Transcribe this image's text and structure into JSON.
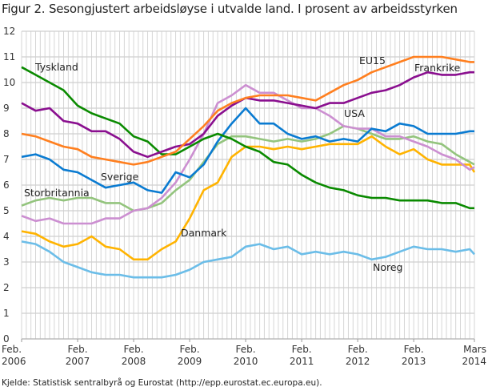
{
  "title": "Figur 2. Sesongjustert arbeidsløyse i utvalde land. I prosent av arbeidsstyrken",
  "source": "Kjelde: Statistisk sentralbyrå og Eurostat (http://epp.eurostat.ec.europa.eu).",
  "chart_data": {
    "type": "line",
    "title": "Figur 2. Sesongjustert arbeidsløyse i utvalde land. I prosent av arbeidsstyrken",
    "ylim": [
      0,
      12
    ],
    "yticks": [
      0,
      1,
      2,
      3,
      4,
      5,
      6,
      7,
      8,
      9,
      10,
      11,
      12
    ],
    "grid": true,
    "legend": "inline labels",
    "xtick_labels": [
      [
        "Feb.",
        "2006"
      ],
      [
        "Feb.",
        "2007"
      ],
      [
        "Feb.",
        "2008"
      ],
      [
        "Feb.",
        "2009"
      ],
      [
        "Feb.",
        "2010"
      ],
      [
        "Feb.",
        "2011"
      ],
      [
        "Feb.",
        "2012"
      ],
      [
        "Feb.",
        "2013"
      ],
      [
        "Mars",
        "2014"
      ]
    ],
    "x": [
      "2006-02",
      "2006-05",
      "2006-08",
      "2006-11",
      "2007-02",
      "2007-05",
      "2007-08",
      "2007-11",
      "2008-02",
      "2008-05",
      "2008-08",
      "2008-11",
      "2009-02",
      "2009-05",
      "2009-08",
      "2009-11",
      "2010-02",
      "2010-05",
      "2010-08",
      "2010-11",
      "2011-02",
      "2011-05",
      "2011-08",
      "2011-11",
      "2012-02",
      "2012-05",
      "2012-08",
      "2012-11",
      "2013-02",
      "2013-05",
      "2013-08",
      "2013-11",
      "2014-02",
      "2014-03"
    ],
    "series": [
      {
        "name": "Noreg",
        "color": "#6bbde8",
        "values": [
          3.8,
          3.7,
          3.4,
          3.0,
          2.8,
          2.6,
          2.5,
          2.5,
          2.4,
          2.4,
          2.4,
          2.5,
          2.7,
          3.0,
          3.1,
          3.2,
          3.6,
          3.7,
          3.5,
          3.6,
          3.3,
          3.4,
          3.3,
          3.4,
          3.3,
          3.1,
          3.2,
          3.4,
          3.6,
          3.5,
          3.5,
          3.4,
          3.5,
          3.3
        ]
      },
      {
        "name": "Danmark",
        "color": "#ffb300",
        "values": [
          4.2,
          4.1,
          3.8,
          3.6,
          3.7,
          4.0,
          3.6,
          3.5,
          3.1,
          3.1,
          3.5,
          3.8,
          4.7,
          5.8,
          6.1,
          7.1,
          7.5,
          7.5,
          7.4,
          7.5,
          7.4,
          7.5,
          7.6,
          7.6,
          7.6,
          7.9,
          7.5,
          7.2,
          7.4,
          7.0,
          6.8,
          6.8,
          6.8,
          6.5
        ]
      },
      {
        "name": "Storbritannia",
        "color": "#93c47d",
        "values": [
          5.2,
          5.4,
          5.5,
          5.4,
          5.5,
          5.5,
          5.3,
          5.3,
          5.0,
          5.1,
          5.3,
          5.8,
          6.2,
          6.9,
          7.6,
          7.9,
          7.9,
          7.8,
          7.7,
          7.8,
          7.7,
          7.8,
          8.0,
          8.3,
          8.2,
          8.0,
          7.8,
          7.8,
          7.9,
          7.7,
          7.6,
          7.2,
          6.9,
          6.8
        ]
      },
      {
        "name": "USA",
        "color": "#cc8fd1",
        "values": [
          4.8,
          4.6,
          4.7,
          4.5,
          4.5,
          4.5,
          4.7,
          4.7,
          5.0,
          5.1,
          5.5,
          6.1,
          7.0,
          8.0,
          9.2,
          9.5,
          9.9,
          9.6,
          9.6,
          9.3,
          9.0,
          9.0,
          8.7,
          8.3,
          8.2,
          8.2,
          7.9,
          7.9,
          7.7,
          7.5,
          7.2,
          7.0,
          6.6,
          6.7
        ]
      },
      {
        "name": "Sverige",
        "color": "#0a7bd1",
        "values": [
          7.1,
          7.2,
          7.0,
          6.6,
          6.5,
          6.2,
          5.9,
          6.0,
          6.1,
          5.8,
          5.7,
          6.5,
          6.3,
          6.8,
          7.7,
          8.4,
          9.0,
          8.4,
          8.4,
          8.0,
          7.8,
          7.9,
          7.7,
          7.8,
          7.7,
          8.2,
          8.1,
          8.4,
          8.3,
          8.0,
          8.0,
          8.0,
          8.1,
          8.1
        ]
      },
      {
        "name": "Tyskland",
        "color": "#0a8a00",
        "values": [
          10.6,
          10.3,
          10.0,
          9.7,
          9.1,
          8.8,
          8.6,
          8.4,
          7.9,
          7.7,
          7.2,
          7.2,
          7.5,
          7.8,
          8.0,
          7.8,
          7.5,
          7.3,
          6.9,
          6.8,
          6.4,
          6.1,
          5.9,
          5.8,
          5.6,
          5.5,
          5.5,
          5.4,
          5.4,
          5.4,
          5.3,
          5.3,
          5.1,
          5.1
        ]
      },
      {
        "name": "Frankrike",
        "color": "#8a0f8f",
        "values": [
          9.2,
          8.9,
          9.0,
          8.5,
          8.4,
          8.1,
          8.1,
          7.8,
          7.3,
          7.1,
          7.3,
          7.5,
          7.6,
          8.0,
          8.7,
          9.1,
          9.4,
          9.3,
          9.3,
          9.2,
          9.1,
          9.0,
          9.2,
          9.2,
          9.4,
          9.6,
          9.7,
          9.9,
          10.2,
          10.4,
          10.3,
          10.3,
          10.4,
          10.4
        ]
      },
      {
        "name": "EU15",
        "color": "#ff7f1f",
        "values": [
          8.0,
          7.9,
          7.7,
          7.5,
          7.4,
          7.1,
          7.0,
          6.9,
          6.8,
          6.9,
          7.1,
          7.3,
          7.8,
          8.3,
          8.9,
          9.2,
          9.4,
          9.5,
          9.5,
          9.5,
          9.4,
          9.3,
          9.6,
          9.9,
          10.1,
          10.4,
          10.6,
          10.8,
          11.0,
          11.0,
          11.0,
          10.9,
          10.8,
          10.8
        ]
      }
    ]
  }
}
